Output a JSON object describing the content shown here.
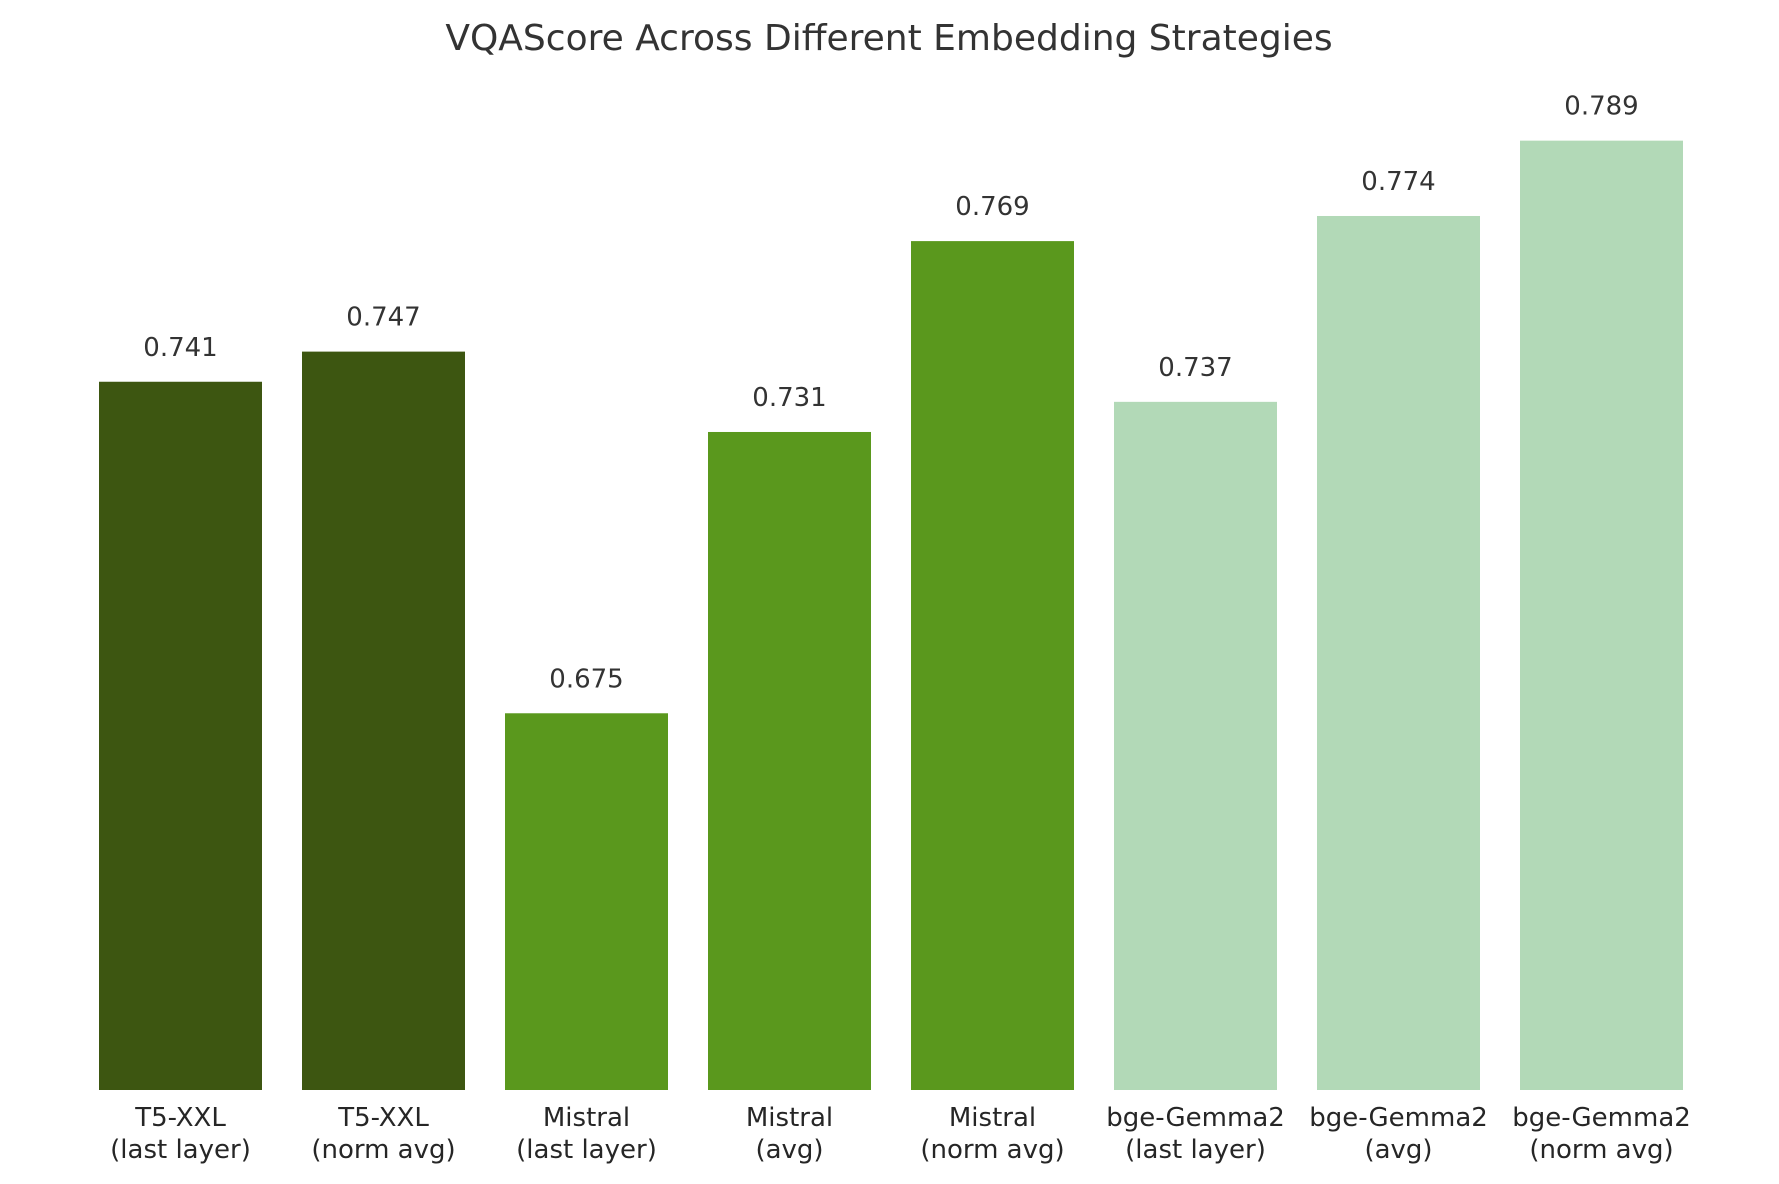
{
  "chart_data": {
    "type": "bar",
    "title": "VQAScore Across Different Embedding Strategies",
    "xlabel": "",
    "ylabel": "",
    "ylim": [
      0.6,
      0.817
    ],
    "grid": false,
    "categories": [
      [
        "T5-XXL",
        "(last layer)"
      ],
      [
        "T5-XXL",
        "(norm avg)"
      ],
      [
        "Mistral",
        "(last layer)"
      ],
      [
        "Mistral",
        "(avg)"
      ],
      [
        "Mistral",
        "(norm avg)"
      ],
      [
        "bge-Gemma2",
        "(last layer)"
      ],
      [
        "bge-Gemma2",
        "(avg)"
      ],
      [
        "bge-Gemma2",
        "(norm avg)"
      ]
    ],
    "values": [
      0.741,
      0.747,
      0.675,
      0.731,
      0.769,
      0.737,
      0.774,
      0.789
    ],
    "value_labels": [
      "0.741",
      "0.747",
      "0.675",
      "0.731",
      "0.769",
      "0.737",
      "0.774",
      "0.789"
    ],
    "colors": [
      "#3d5611",
      "#3d5611",
      "#5a981d",
      "#5a981d",
      "#5a981d",
      "#b2d9b7",
      "#b2d9b7",
      "#b2d9b7"
    ]
  }
}
